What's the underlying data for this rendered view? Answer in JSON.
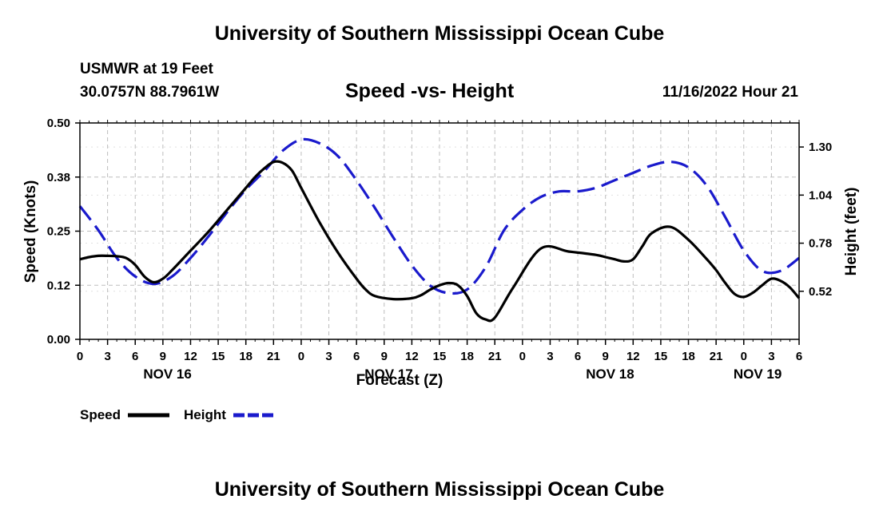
{
  "header": {
    "title": "University of Southern Mississippi Ocean Cube",
    "station": "USMWR at 19 Feet",
    "coords": "30.0757N  88.7961W",
    "subtitle": "Speed -vs- Height",
    "timestamp": "11/16/2022 Hour 21"
  },
  "footer": {
    "title": "University of Southern Mississippi Ocean Cube"
  },
  "legend": {
    "speed_label": "Speed",
    "height_label": "Height",
    "speed_color": "#000000",
    "height_color": "#1a1acc"
  },
  "chart_data": {
    "type": "line",
    "title": "Speed -vs- Height",
    "xlabel": "Forecast (Z)",
    "ylabel": "Speed (Knots)",
    "y2label": "Height (feet)",
    "x_unit": "hours since Nov 16 00Z",
    "xlim": [
      0,
      78
    ],
    "ylim": [
      0,
      0.5
    ],
    "y2lim": [
      0.26,
      1.43
    ],
    "x_ticks": [
      0,
      3,
      6,
      9,
      12,
      15,
      18,
      21,
      24,
      27,
      30,
      33,
      36,
      39,
      42,
      45,
      48,
      51,
      54,
      57,
      60,
      63,
      66,
      69,
      72,
      75,
      78
    ],
    "x_tick_labels": [
      "0",
      "3",
      "6",
      "9",
      "12",
      "15",
      "18",
      "21",
      "0",
      "3",
      "6",
      "9",
      "12",
      "15",
      "18",
      "21",
      "0",
      "3",
      "6",
      "9",
      "12",
      "15",
      "18",
      "21",
      "0",
      "3",
      "6"
    ],
    "y_ticks": [
      0,
      0.125,
      0.25,
      0.375,
      0.5
    ],
    "y_tick_labels": [
      "0.00",
      "0.12",
      "0.25",
      "0.38",
      "0.50"
    ],
    "y2_ticks": [
      0.52,
      0.78,
      1.04,
      1.3
    ],
    "y2_tick_labels": [
      "0.52",
      "0.78",
      "1.04",
      "1.30"
    ],
    "day_labels": [
      {
        "x": 9.5,
        "label": "NOV 16"
      },
      {
        "x": 33.5,
        "label": "NOV 17"
      },
      {
        "x": 57.5,
        "label": "NOV 18"
      },
      {
        "x": 73.5,
        "label": "NOV 19"
      }
    ],
    "grid": true,
    "series": [
      {
        "name": "Speed",
        "axis": "left",
        "style": "solid",
        "x": [
          0,
          1,
          2,
          3,
          4,
          5,
          6,
          7,
          8,
          9,
          10,
          12,
          14,
          16,
          18,
          19,
          20,
          21,
          22,
          23,
          24,
          26,
          28,
          30,
          31,
          32,
          34,
          36,
          37,
          38,
          39,
          40,
          41,
          42,
          43,
          44,
          45,
          47,
          50,
          53,
          56,
          57,
          58,
          59,
          60,
          61,
          62,
          64,
          66,
          68,
          69,
          70,
          71,
          72,
          73,
          74,
          75,
          76,
          77,
          78
        ],
        "values": [
          0.185,
          0.19,
          0.193,
          0.193,
          0.192,
          0.188,
          0.172,
          0.145,
          0.132,
          0.14,
          0.16,
          0.205,
          0.25,
          0.3,
          0.35,
          0.375,
          0.395,
          0.41,
          0.408,
          0.39,
          0.35,
          0.27,
          0.2,
          0.14,
          0.115,
          0.1,
          0.093,
          0.095,
          0.102,
          0.115,
          0.125,
          0.13,
          0.125,
          0.1,
          0.06,
          0.046,
          0.05,
          0.12,
          0.21,
          0.203,
          0.195,
          0.19,
          0.185,
          0.18,
          0.185,
          0.215,
          0.245,
          0.26,
          0.23,
          0.185,
          0.16,
          0.13,
          0.105,
          0.098,
          0.108,
          0.125,
          0.14,
          0.135,
          0.12,
          0.095
        ]
      },
      {
        "name": "Height",
        "axis": "right",
        "style": "dashed",
        "x": [
          0,
          2,
          4,
          6,
          8,
          10,
          12,
          14,
          16,
          18,
          20,
          22,
          24,
          26,
          28,
          30,
          32,
          34,
          36,
          38,
          40,
          42,
          44,
          46,
          48,
          50,
          52,
          54,
          56,
          58,
          60,
          62,
          64,
          66,
          68,
          70,
          72,
          74,
          76,
          78
        ],
        "values": [
          0.98,
          0.85,
          0.7,
          0.6,
          0.56,
          0.6,
          0.7,
          0.82,
          0.95,
          1.07,
          1.17,
          1.28,
          1.34,
          1.32,
          1.25,
          1.12,
          0.97,
          0.81,
          0.66,
          0.55,
          0.51,
          0.53,
          0.65,
          0.85,
          0.96,
          1.03,
          1.06,
          1.06,
          1.08,
          1.12,
          1.16,
          1.2,
          1.22,
          1.19,
          1.09,
          0.92,
          0.74,
          0.63,
          0.63,
          0.7
        ]
      }
    ]
  }
}
